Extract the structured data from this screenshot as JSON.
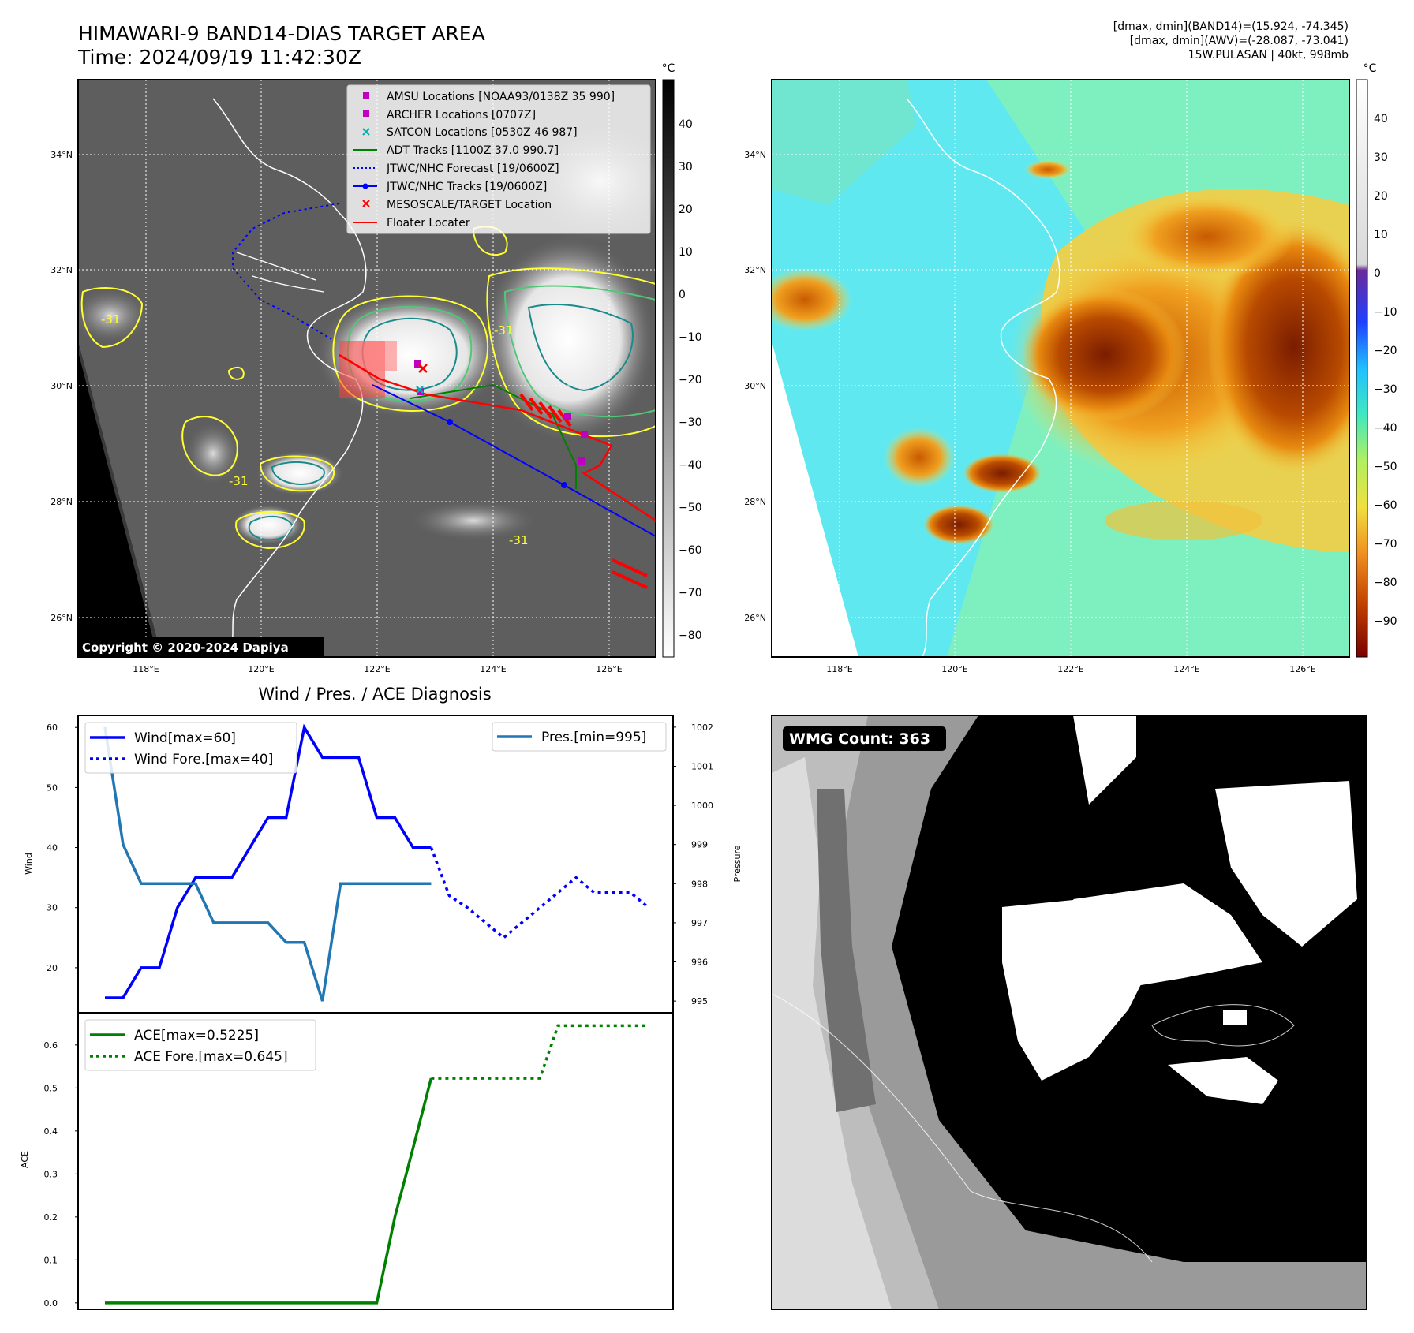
{
  "header": {
    "title_line1": "HIMAWARI-9 BAND14-DIAS TARGET AREA",
    "title_line2": "Time: 2024/09/19 11:42:30Z",
    "info_line1": "[dmax, dmin](BAND14)=(15.924, -74.345)",
    "info_line2": "[dmax, dmin](AWV)=(-28.087, -73.041)",
    "info_line3": "15W.PULASAN | 40kt, 998mb"
  },
  "maps": {
    "lat_labels": [
      "34°N",
      "32°N",
      "30°N",
      "28°N",
      "26°N"
    ],
    "lon_labels": [
      "118°E",
      "120°E",
      "122°E",
      "124°E",
      "126°E"
    ],
    "copyright": "Copyright © 2020-2024 Dapiya",
    "colorbar_unit": "°C",
    "ir_colorbar_ticks": [
      "40",
      "30",
      "20",
      "10",
      "0",
      "−10",
      "−20",
      "−30",
      "−40",
      "−50",
      "−60",
      "−70",
      "−80"
    ],
    "wv_colorbar_ticks": [
      "40",
      "30",
      "20",
      "10",
      "0",
      "−10",
      "−20",
      "−30",
      "−40",
      "−50",
      "−60",
      "−70",
      "−80",
      "−90"
    ],
    "contour_labels": [
      "-31",
      "-31",
      "-31",
      "-31"
    ],
    "colors": {
      "amsu": "#c000c0",
      "archer": "#c000c0",
      "satcon": "#00b0b0",
      "adt": "#008000",
      "jtwc_forecast": "#0000ff",
      "jtwc_track": "#0000ff",
      "target": "#ff0000",
      "floater": "#ff0000",
      "contour_yellow": "#ffff30",
      "contour_green": "#50c878",
      "contour_teal": "#1a8a8a"
    }
  },
  "legend": [
    {
      "label": "AMSU Locations [NOAA93/0138Z 35 990]",
      "marker": "square",
      "color": "#c000c0"
    },
    {
      "label": "ARCHER Locations [0707Z]",
      "marker": "square",
      "color": "#c000c0"
    },
    {
      "label": "SATCON Locations [0530Z 46 987]",
      "marker": "x",
      "color": "#00b0b0"
    },
    {
      "label": "ADT Tracks [1100Z 37.0 990.7]",
      "marker": "line",
      "color": "#008000"
    },
    {
      "label": "JTWC/NHC Forecast [19/0600Z]",
      "marker": "dotted",
      "color": "#0000ff"
    },
    {
      "label": "JTWC/NHC Tracks [19/0600Z]",
      "marker": "line-dot",
      "color": "#0000ff"
    },
    {
      "label": "MESOSCALE/TARGET Location",
      "marker": "x",
      "color": "#ff0000"
    },
    {
      "label": "Floater Locater",
      "marker": "line",
      "color": "#ff0000"
    }
  ],
  "wmg": {
    "label": "WMG Count: 363"
  },
  "chart_data": [
    {
      "type": "line",
      "title": "Wind / Pres. / ACE Diagnosis",
      "ylabel": "Wind",
      "ylabel_right": "Pressure",
      "ylim": [
        12.5,
        62
      ],
      "ylim_right": [
        994.7,
        1002.3
      ],
      "yticks": [
        20,
        30,
        40,
        50,
        60
      ],
      "yticks_right": [
        995,
        996,
        997,
        998,
        999,
        1000,
        1001,
        1002
      ],
      "x": [
        0,
        1,
        2,
        3,
        4,
        5,
        6,
        7,
        8,
        9,
        10,
        11,
        12,
        13,
        14,
        15,
        16,
        17,
        18,
        19,
        20,
        21,
        22,
        23,
        24,
        25,
        26,
        27,
        28,
        29,
        30
      ],
      "series": [
        {
          "name": "Wind[max=60]",
          "color": "#0000ff",
          "style": "solid",
          "x": [
            0,
            1,
            2,
            3,
            4,
            5,
            6,
            7,
            8,
            9,
            10,
            11,
            12,
            13,
            14,
            15,
            16,
            17,
            18
          ],
          "values": [
            15,
            15,
            20,
            20,
            30,
            35,
            35,
            35,
            40,
            45,
            45,
            60,
            55,
            55,
            55,
            45,
            45,
            40,
            40
          ]
        },
        {
          "name": "Wind Fore.[max=40]",
          "color": "#0000ff",
          "style": "dotted",
          "x": [
            18,
            19,
            20,
            21,
            22,
            23,
            24,
            25,
            26,
            27,
            28,
            29,
            30
          ],
          "values": [
            40,
            32,
            30,
            27.5,
            25,
            27.5,
            30,
            32.5,
            35,
            32.5,
            32.5,
            32.5,
            30
          ]
        },
        {
          "name": "Pres.[min=995]",
          "color": "#1f77b4",
          "style": "solid",
          "axis": "right",
          "x": [
            0,
            1,
            2,
            3,
            4,
            5,
            6,
            7,
            8,
            9,
            10,
            11,
            12,
            13,
            14,
            15,
            16,
            17,
            18
          ],
          "values": [
            1002,
            999,
            998,
            998,
            998,
            998,
            997,
            997,
            997,
            997,
            996.5,
            996.5,
            995,
            998,
            998,
            998,
            998,
            998,
            998
          ]
        }
      ]
    },
    {
      "type": "line",
      "ylabel": "ACE",
      "ylim": [
        -0.015,
        0.675
      ],
      "yticks": [
        0.0,
        0.1,
        0.2,
        0.3,
        0.4,
        0.5,
        0.6
      ],
      "series": [
        {
          "name": "ACE[max=0.5225]",
          "color": "#008000",
          "style": "solid",
          "x": [
            0,
            1,
            2,
            3,
            4,
            5,
            6,
            7,
            8,
            9,
            10,
            11,
            12,
            13,
            14,
            15,
            16,
            17,
            18
          ],
          "values": [
            0,
            0,
            0,
            0,
            0,
            0,
            0,
            0,
            0,
            0,
            0,
            0,
            0,
            0,
            0,
            0,
            0.2,
            0.36,
            0.5225
          ]
        },
        {
          "name": "ACE Fore.[max=0.645]",
          "color": "#008000",
          "style": "dotted",
          "x": [
            18,
            19,
            20,
            21,
            22,
            23,
            24,
            25,
            26,
            27,
            28,
            29,
            30
          ],
          "values": [
            0.5225,
            0.5225,
            0.5225,
            0.5225,
            0.5225,
            0.5225,
            0.5225,
            0.645,
            0.645,
            0.645,
            0.645,
            0.645,
            0.645
          ]
        }
      ]
    }
  ]
}
